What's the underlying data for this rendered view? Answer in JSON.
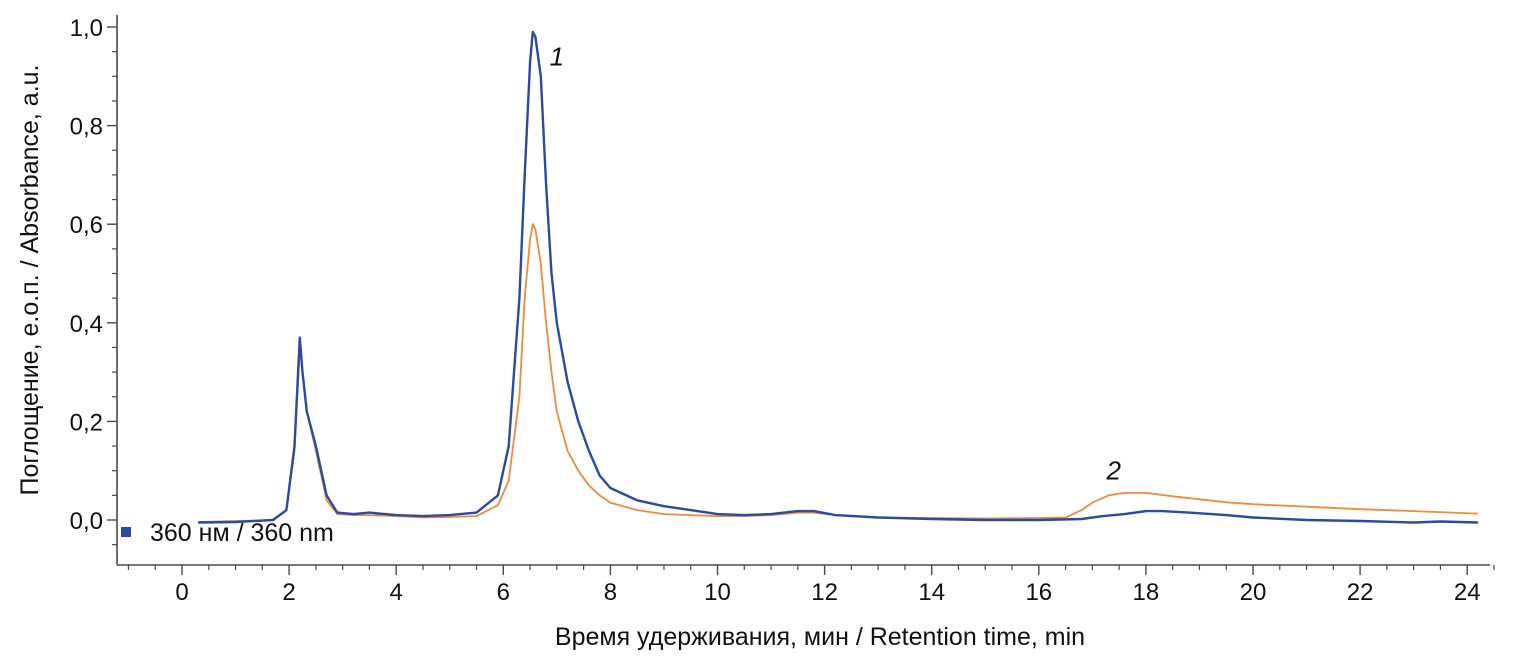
{
  "chart_data": {
    "type": "line",
    "xlabel": "Время удерживания, мин / Retention time, min",
    "ylabel": "Поглощение, е.о.п. / Absorbance, a.u.",
    "xlim": [
      -1.2,
      24.8
    ],
    "ylim": [
      -0.085,
      1.03
    ],
    "x_ticks": [
      0,
      2,
      4,
      6,
      8,
      10,
      12,
      14,
      16,
      18,
      20,
      22,
      24
    ],
    "x_tick_labels": [
      "0",
      "2",
      "4",
      "6",
      "8",
      "10",
      "12",
      "14",
      "16",
      "18",
      "20",
      "22",
      "24"
    ],
    "y_ticks": [
      0.0,
      0.2,
      0.4,
      0.6,
      0.8,
      1.0
    ],
    "y_tick_labels": [
      "0,0",
      "0,2",
      "0,4",
      "0,6",
      "0,8",
      "1,0"
    ],
    "grid": false,
    "legend": {
      "position": "bottom-left",
      "entries": [
        {
          "label": "360 нм / 360 nm",
          "color": "#2b4aa0"
        }
      ]
    },
    "annotations": [
      {
        "text": "1",
        "x": 7.0,
        "y": 0.94
      },
      {
        "text": "2",
        "x": 17.4,
        "y": 0.1
      }
    ],
    "series": [
      {
        "color": "#2b4aa0",
        "x": [
          0.3,
          1.0,
          1.7,
          1.95,
          2.1,
          2.2,
          2.25,
          2.33,
          2.5,
          2.7,
          2.9,
          3.2,
          3.5,
          4.0,
          4.5,
          5.0,
          5.5,
          5.9,
          6.1,
          6.3,
          6.4,
          6.5,
          6.55,
          6.6,
          6.7,
          6.8,
          6.9,
          7.0,
          7.2,
          7.4,
          7.6,
          7.8,
          8.0,
          8.5,
          9.0,
          9.5,
          10.0,
          10.5,
          11.0,
          11.5,
          11.8,
          12.2,
          13.0,
          14.0,
          15.0,
          16.0,
          16.8,
          17.2,
          17.6,
          18.0,
          18.3,
          18.8,
          19.5,
          20.0,
          21.0,
          22.0,
          23.0,
          23.5,
          24.2
        ],
        "y": [
          -0.005,
          -0.004,
          0.0,
          0.02,
          0.15,
          0.37,
          0.3,
          0.22,
          0.15,
          0.05,
          0.015,
          0.012,
          0.015,
          0.01,
          0.008,
          0.01,
          0.015,
          0.05,
          0.15,
          0.45,
          0.7,
          0.93,
          0.99,
          0.98,
          0.9,
          0.68,
          0.5,
          0.4,
          0.28,
          0.2,
          0.14,
          0.09,
          0.065,
          0.04,
          0.028,
          0.02,
          0.012,
          0.01,
          0.012,
          0.018,
          0.018,
          0.01,
          0.005,
          0.002,
          0.0,
          0.0,
          0.002,
          0.008,
          0.012,
          0.018,
          0.018,
          0.015,
          0.01,
          0.005,
          0.0,
          -0.002,
          -0.005,
          -0.003,
          -0.005
        ]
      },
      {
        "color": "#f08a3c",
        "x": [
          0.3,
          1.0,
          1.7,
          1.95,
          2.1,
          2.2,
          2.25,
          2.33,
          2.5,
          2.7,
          2.9,
          3.2,
          3.5,
          4.0,
          4.5,
          5.0,
          5.5,
          5.9,
          6.1,
          6.3,
          6.4,
          6.5,
          6.55,
          6.6,
          6.7,
          6.8,
          6.9,
          7.0,
          7.2,
          7.4,
          7.6,
          7.8,
          8.0,
          8.5,
          9.0,
          9.5,
          10.0,
          10.5,
          11.0,
          11.5,
          11.8,
          12.2,
          13.0,
          14.0,
          15.0,
          16.0,
          16.5,
          16.8,
          17.0,
          17.3,
          17.6,
          18.0,
          18.5,
          19.0,
          19.5,
          20.0,
          21.0,
          22.0,
          23.0,
          24.2
        ],
        "y": [
          -0.004,
          -0.002,
          0.0,
          0.02,
          0.14,
          0.35,
          0.3,
          0.22,
          0.14,
          0.04,
          0.012,
          0.01,
          0.01,
          0.008,
          0.005,
          0.006,
          0.008,
          0.03,
          0.08,
          0.25,
          0.45,
          0.57,
          0.6,
          0.59,
          0.52,
          0.4,
          0.3,
          0.22,
          0.14,
          0.1,
          0.07,
          0.05,
          0.035,
          0.02,
          0.012,
          0.01,
          0.008,
          0.008,
          0.01,
          0.015,
          0.015,
          0.01,
          0.005,
          0.004,
          0.003,
          0.004,
          0.005,
          0.02,
          0.035,
          0.05,
          0.055,
          0.055,
          0.048,
          0.042,
          0.036,
          0.032,
          0.027,
          0.022,
          0.018,
          0.013
        ]
      }
    ]
  }
}
